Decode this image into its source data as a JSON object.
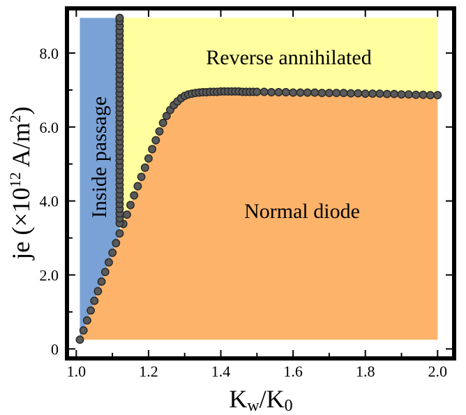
{
  "chart_data": {
    "type": "scatter",
    "xlabel": {
      "main": "K",
      "sub_1": "w",
      "mid": "/K",
      "sub_2": "0"
    },
    "ylabel": {
      "main": "je (×10",
      "sup_1": "12",
      "mid": " A/m",
      "sup_2": "2",
      "end": ")"
    },
    "xlim": [
      0.98,
      2.04
    ],
    "ylim": [
      -0.2,
      9.15
    ],
    "x_ticks": [
      1.0,
      1.2,
      1.4,
      1.6,
      1.8,
      2.0
    ],
    "x_tick_labels": [
      "1.0",
      "1.2",
      "1.4",
      "1.6",
      "1.8",
      "2.0"
    ],
    "y_ticks": [
      0,
      2,
      4,
      6,
      8
    ],
    "y_tick_labels": [
      "0",
      "2.0",
      "4.0",
      "6.0",
      "8.0"
    ],
    "regions": [
      {
        "name": "Inside passage",
        "color": "#7aa2d6"
      },
      {
        "name": "Reverse annihilated",
        "color": "#ffff9f"
      },
      {
        "name": "Normal diode",
        "color": "#fdb36a"
      }
    ],
    "boundary_color": "#5a5a5a",
    "series": [
      {
        "x": [
          1.01,
          1.02,
          1.03,
          1.04,
          1.05,
          1.06,
          1.07,
          1.08,
          1.09,
          1.1,
          1.11,
          1.12,
          1.13,
          1.14,
          1.15,
          1.16,
          1.17,
          1.18,
          1.19,
          1.2,
          1.21,
          1.22,
          1.23,
          1.24,
          1.25,
          1.26,
          1.27,
          1.28,
          1.29,
          1.3,
          1.31,
          1.32,
          1.33,
          1.34,
          1.35,
          1.36,
          1.37,
          1.38,
          1.39,
          1.4,
          1.41,
          1.42,
          1.43,
          1.44,
          1.45,
          1.46,
          1.47,
          1.48,
          1.49,
          1.5,
          1.52,
          1.54,
          1.56,
          1.58,
          1.6,
          1.62,
          1.64,
          1.66,
          1.68,
          1.7,
          1.72,
          1.74,
          1.76,
          1.78,
          1.8,
          1.82,
          1.84,
          1.86,
          1.88,
          1.9,
          1.92,
          1.94,
          1.96,
          1.98,
          2.0
        ],
        "y": [
          0.25,
          0.5,
          0.77,
          1.04,
          1.3,
          1.56,
          1.82,
          2.08,
          2.34,
          2.6,
          2.86,
          3.12,
          3.38,
          3.63,
          3.89,
          4.15,
          4.4,
          4.65,
          4.9,
          5.15,
          5.4,
          5.64,
          5.88,
          6.11,
          6.3,
          6.46,
          6.59,
          6.69,
          6.78,
          6.84,
          6.88,
          6.9,
          6.92,
          6.93,
          6.94,
          6.94,
          6.95,
          6.95,
          6.95,
          6.96,
          6.96,
          6.96,
          6.96,
          6.96,
          6.96,
          6.95,
          6.95,
          6.95,
          6.95,
          6.95,
          6.95,
          6.94,
          6.94,
          6.94,
          6.93,
          6.93,
          6.93,
          6.93,
          6.92,
          6.92,
          6.92,
          6.92,
          6.91,
          6.91,
          6.9,
          6.9,
          6.9,
          6.89,
          6.89,
          6.88,
          6.88,
          6.87,
          6.87,
          6.86,
          6.86
        ]
      },
      {
        "x": [
          1.12,
          1.12,
          1.12,
          1.12,
          1.12,
          1.12,
          1.12,
          1.12,
          1.12,
          1.12,
          1.12,
          1.12,
          1.12,
          1.12,
          1.12,
          1.12,
          1.12,
          1.12,
          1.12,
          1.12,
          1.12,
          1.12,
          1.12,
          1.12,
          1.12,
          1.12,
          1.12,
          1.12,
          1.12,
          1.12,
          1.12,
          1.12,
          1.12,
          1.12,
          1.12,
          1.12,
          1.12,
          1.12,
          1.12,
          1.12,
          1.12,
          1.12,
          1.12,
          1.12
        ],
        "y": [
          3.4,
          3.53,
          3.66,
          3.79,
          3.92,
          4.05,
          4.18,
          4.31,
          4.44,
          4.57,
          4.7,
          4.83,
          4.96,
          5.09,
          5.22,
          5.35,
          5.48,
          5.61,
          5.74,
          5.87,
          6.0,
          6.13,
          6.26,
          6.39,
          6.52,
          6.65,
          6.78,
          6.91,
          7.04,
          7.17,
          7.3,
          7.43,
          7.56,
          7.69,
          7.82,
          7.95,
          8.08,
          8.21,
          8.34,
          8.47,
          8.6,
          8.73,
          8.86,
          8.95
        ]
      }
    ]
  }
}
